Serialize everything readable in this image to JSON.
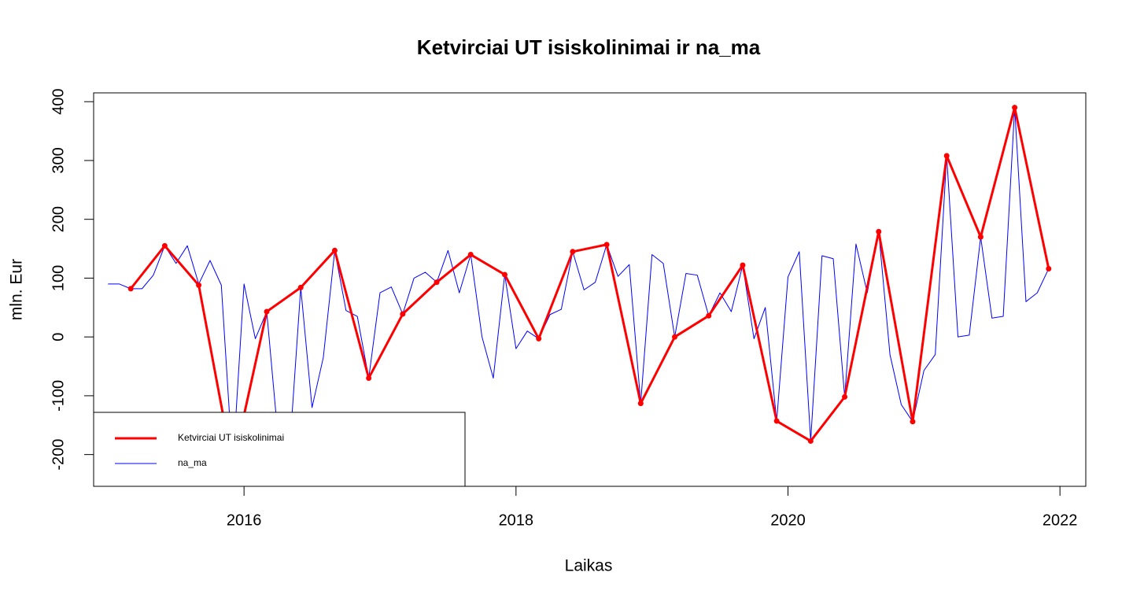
{
  "chart_data": {
    "type": "line",
    "title": "Ketvirciai UT isiskolinimai ir na_ma",
    "x_label": "Laikas",
    "y_label": "mln. Eur",
    "xlim": [
      2014.894,
      2022.19
    ],
    "ylim": [
      -254,
      415
    ],
    "xticks": [
      2016,
      2018,
      2020,
      2022
    ],
    "yticks": [
      -200,
      -100,
      0,
      100,
      200,
      300,
      400
    ],
    "legend": "bottomleft",
    "series": [
      {
        "name": "Ketvirciai UT isiskolinimai",
        "color": "#ff0000",
        "width": 3,
        "points": true,
        "x": [
          2015.167,
          2015.417,
          2015.667,
          2015.917,
          2016.167,
          2016.417,
          2016.667,
          2016.917,
          2017.167,
          2017.417,
          2017.667,
          2017.917,
          2018.167,
          2018.417,
          2018.667,
          2018.917,
          2019.167,
          2019.417,
          2019.667,
          2019.917,
          2020.167,
          2020.417,
          2020.667,
          2020.917,
          2021.167,
          2021.417,
          2021.667,
          2021.917
        ],
        "values": [
          82,
          155,
          88,
          -220,
          43,
          84,
          147,
          -70,
          39,
          93,
          140,
          106,
          -3,
          145,
          157,
          -113,
          0,
          36,
          122,
          -143,
          -177,
          -102,
          179,
          -144,
          308,
          170,
          390,
          116
        ]
      },
      {
        "name": "na_ma",
        "color": "#0000ff",
        "width": 1,
        "points": false,
        "x": [
          2015,
          2015.083,
          2015.167,
          2015.25,
          2015.333,
          2015.417,
          2015.5,
          2015.583,
          2015.667,
          2015.75,
          2015.833,
          2015.917,
          2016,
          2016.083,
          2016.167,
          2016.25,
          2016.333,
          2016.417,
          2016.5,
          2016.583,
          2016.667,
          2016.75,
          2016.833,
          2016.917,
          2017,
          2017.083,
          2017.167,
          2017.25,
          2017.333,
          2017.417,
          2017.5,
          2017.583,
          2017.667,
          2017.75,
          2017.833,
          2017.917,
          2018,
          2018.083,
          2018.167,
          2018.25,
          2018.333,
          2018.417,
          2018.5,
          2018.583,
          2018.667,
          2018.75,
          2018.833,
          2018.917,
          2019,
          2019.083,
          2019.167,
          2019.25,
          2019.333,
          2019.417,
          2019.5,
          2019.583,
          2019.667,
          2019.75,
          2019.833,
          2019.917,
          2020,
          2020.083,
          2020.167,
          2020.25,
          2020.333,
          2020.417,
          2020.5,
          2020.583,
          2020.667,
          2020.75,
          2020.833,
          2020.917,
          2021,
          2021.083,
          2021.167,
          2021.25,
          2021.333,
          2021.417,
          2021.5,
          2021.583,
          2021.667,
          2021.75,
          2021.833,
          2021.917
        ],
        "values": [
          90,
          90,
          82,
          82,
          105,
          155,
          125,
          155,
          90,
          130,
          88,
          -220,
          90,
          -3,
          43,
          -170,
          -200,
          84,
          -120,
          -35,
          147,
          45,
          35,
          -70,
          75,
          85,
          39,
          100,
          110,
          93,
          147,
          75,
          140,
          0,
          -70,
          106,
          -20,
          10,
          -3,
          38,
          47,
          145,
          80,
          93,
          157,
          103,
          123,
          -113,
          140,
          125,
          0,
          108,
          105,
          36,
          75,
          43,
          122,
          -3,
          50,
          -143,
          102,
          145,
          -177,
          138,
          133,
          -102,
          158,
          75,
          179,
          -30,
          -115,
          -144,
          -57,
          -30,
          308,
          0,
          3,
          170,
          32,
          35,
          390,
          60,
          75,
          116
        ]
      }
    ]
  }
}
